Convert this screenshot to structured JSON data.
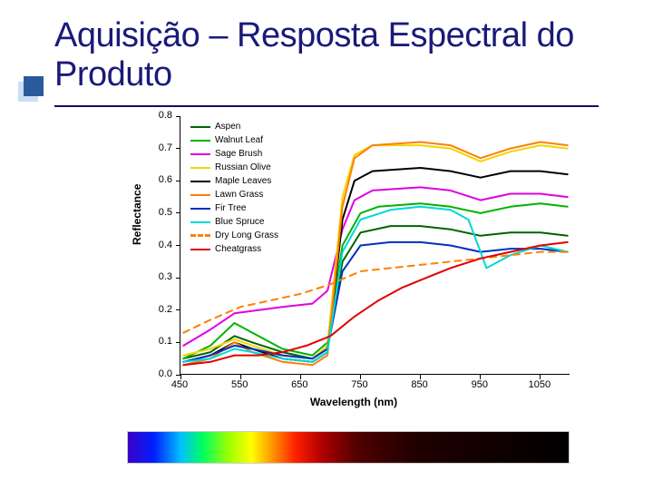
{
  "title": "Aquisição – Resposta Espectral do Produto",
  "chart": {
    "type": "line",
    "xlabel": "Wavelength (nm)",
    "ylabel": "Reflectance",
    "xlim": [
      450,
      1100
    ],
    "ylim": [
      0.0,
      0.8
    ],
    "xtick_step": 100,
    "ytick_step": 0.1,
    "xticks": [
      450,
      550,
      650,
      750,
      850,
      950,
      1050
    ],
    "yticks": [
      0.0,
      0.1,
      0.2,
      0.3,
      0.4,
      0.5,
      0.6,
      0.7,
      0.8
    ],
    "background_color": "#ffffff",
    "axis_color": "#000000",
    "label_fontsize": 12,
    "tick_fontsize": 11,
    "line_width": 2,
    "series": [
      {
        "name": "Aspen",
        "color": "#006400",
        "dash": "solid",
        "points": [
          [
            455,
            0.05
          ],
          [
            500,
            0.07
          ],
          [
            540,
            0.12
          ],
          [
            570,
            0.1
          ],
          [
            620,
            0.07
          ],
          [
            670,
            0.05
          ],
          [
            695,
            0.08
          ],
          [
            720,
            0.35
          ],
          [
            750,
            0.44
          ],
          [
            800,
            0.46
          ],
          [
            850,
            0.46
          ],
          [
            900,
            0.45
          ],
          [
            950,
            0.43
          ],
          [
            1000,
            0.44
          ],
          [
            1050,
            0.44
          ],
          [
            1095,
            0.43
          ]
        ]
      },
      {
        "name": "Walnut Leaf",
        "color": "#00b300",
        "dash": "solid",
        "points": [
          [
            455,
            0.05
          ],
          [
            500,
            0.09
          ],
          [
            540,
            0.16
          ],
          [
            570,
            0.13
          ],
          [
            620,
            0.08
          ],
          [
            670,
            0.06
          ],
          [
            695,
            0.1
          ],
          [
            720,
            0.4
          ],
          [
            750,
            0.5
          ],
          [
            780,
            0.52
          ],
          [
            850,
            0.53
          ],
          [
            900,
            0.52
          ],
          [
            950,
            0.5
          ],
          [
            1000,
            0.52
          ],
          [
            1050,
            0.53
          ],
          [
            1095,
            0.52
          ]
        ]
      },
      {
        "name": "Sage Brush",
        "color": "#e000e0",
        "dash": "solid",
        "points": [
          [
            455,
            0.09
          ],
          [
            500,
            0.14
          ],
          [
            540,
            0.19
          ],
          [
            580,
            0.2
          ],
          [
            620,
            0.21
          ],
          [
            670,
            0.22
          ],
          [
            695,
            0.26
          ],
          [
            720,
            0.45
          ],
          [
            740,
            0.54
          ],
          [
            770,
            0.57
          ],
          [
            850,
            0.58
          ],
          [
            900,
            0.57
          ],
          [
            950,
            0.54
          ],
          [
            1000,
            0.56
          ],
          [
            1050,
            0.56
          ],
          [
            1095,
            0.55
          ]
        ]
      },
      {
        "name": "Russian Olive",
        "color": "#f5d400",
        "dash": "solid",
        "points": [
          [
            455,
            0.06
          ],
          [
            500,
            0.08
          ],
          [
            540,
            0.11
          ],
          [
            570,
            0.09
          ],
          [
            620,
            0.06
          ],
          [
            670,
            0.05
          ],
          [
            695,
            0.09
          ],
          [
            720,
            0.55
          ],
          [
            740,
            0.68
          ],
          [
            770,
            0.71
          ],
          [
            850,
            0.71
          ],
          [
            900,
            0.7
          ],
          [
            950,
            0.66
          ],
          [
            1000,
            0.69
          ],
          [
            1050,
            0.71
          ],
          [
            1095,
            0.7
          ]
        ]
      },
      {
        "name": "Maple Leaves",
        "color": "#000000",
        "dash": "solid",
        "points": [
          [
            455,
            0.04
          ],
          [
            500,
            0.06
          ],
          [
            540,
            0.1
          ],
          [
            570,
            0.08
          ],
          [
            620,
            0.05
          ],
          [
            670,
            0.04
          ],
          [
            695,
            0.07
          ],
          [
            720,
            0.48
          ],
          [
            740,
            0.6
          ],
          [
            770,
            0.63
          ],
          [
            850,
            0.64
          ],
          [
            900,
            0.63
          ],
          [
            950,
            0.61
          ],
          [
            1000,
            0.63
          ],
          [
            1050,
            0.63
          ],
          [
            1095,
            0.62
          ]
        ]
      },
      {
        "name": "Lawn Grass",
        "color": "#ff8000",
        "dash": "solid",
        "points": [
          [
            455,
            0.03
          ],
          [
            500,
            0.05
          ],
          [
            540,
            0.1
          ],
          [
            570,
            0.07
          ],
          [
            620,
            0.04
          ],
          [
            670,
            0.03
          ],
          [
            695,
            0.06
          ],
          [
            720,
            0.52
          ],
          [
            740,
            0.67
          ],
          [
            770,
            0.71
          ],
          [
            850,
            0.72
          ],
          [
            900,
            0.71
          ],
          [
            950,
            0.67
          ],
          [
            1000,
            0.7
          ],
          [
            1050,
            0.72
          ],
          [
            1095,
            0.71
          ]
        ]
      },
      {
        "name": "Fir Tree",
        "color": "#0030c0",
        "dash": "solid",
        "points": [
          [
            455,
            0.04
          ],
          [
            500,
            0.06
          ],
          [
            540,
            0.09
          ],
          [
            570,
            0.08
          ],
          [
            620,
            0.06
          ],
          [
            670,
            0.05
          ],
          [
            695,
            0.08
          ],
          [
            720,
            0.32
          ],
          [
            750,
            0.4
          ],
          [
            800,
            0.41
          ],
          [
            850,
            0.41
          ],
          [
            900,
            0.4
          ],
          [
            950,
            0.38
          ],
          [
            1000,
            0.39
          ],
          [
            1050,
            0.39
          ],
          [
            1095,
            0.38
          ]
        ]
      },
      {
        "name": "Blue Spruce",
        "color": "#00d8d8",
        "dash": "solid",
        "points": [
          [
            455,
            0.04
          ],
          [
            500,
            0.05
          ],
          [
            540,
            0.08
          ],
          [
            570,
            0.07
          ],
          [
            620,
            0.05
          ],
          [
            670,
            0.04
          ],
          [
            695,
            0.07
          ],
          [
            720,
            0.38
          ],
          [
            750,
            0.48
          ],
          [
            800,
            0.51
          ],
          [
            850,
            0.52
          ],
          [
            900,
            0.51
          ],
          [
            930,
            0.48
          ],
          [
            960,
            0.33
          ],
          [
            1000,
            0.37
          ],
          [
            1050,
            0.4
          ],
          [
            1095,
            0.38
          ]
        ]
      },
      {
        "name": "Dry Long Grass",
        "color": "#ff8000",
        "dash": "dashed",
        "points": [
          [
            455,
            0.13
          ],
          [
            500,
            0.17
          ],
          [
            550,
            0.21
          ],
          [
            600,
            0.23
          ],
          [
            650,
            0.25
          ],
          [
            700,
            0.28
          ],
          [
            750,
            0.32
          ],
          [
            800,
            0.33
          ],
          [
            850,
            0.34
          ],
          [
            900,
            0.35
          ],
          [
            950,
            0.36
          ],
          [
            1000,
            0.37
          ],
          [
            1050,
            0.38
          ],
          [
            1095,
            0.38
          ]
        ]
      },
      {
        "name": "Cheatgrass",
        "color": "#e00000",
        "dash": "solid",
        "points": [
          [
            455,
            0.03
          ],
          [
            500,
            0.04
          ],
          [
            540,
            0.06
          ],
          [
            580,
            0.06
          ],
          [
            620,
            0.07
          ],
          [
            660,
            0.09
          ],
          [
            700,
            0.12
          ],
          [
            740,
            0.18
          ],
          [
            780,
            0.23
          ],
          [
            820,
            0.27
          ],
          [
            860,
            0.3
          ],
          [
            900,
            0.33
          ],
          [
            950,
            0.36
          ],
          [
            1000,
            0.38
          ],
          [
            1050,
            0.4
          ],
          [
            1095,
            0.41
          ]
        ]
      }
    ]
  },
  "spectrum": {
    "gradient_stops": [
      {
        "pct": 0,
        "color": "#3a00c8"
      },
      {
        "pct": 6,
        "color": "#0020ff"
      },
      {
        "pct": 12,
        "color": "#00c0ff"
      },
      {
        "pct": 17,
        "color": "#00ff60"
      },
      {
        "pct": 23,
        "color": "#a0ff00"
      },
      {
        "pct": 28,
        "color": "#ffff00"
      },
      {
        "pct": 33,
        "color": "#ff9000"
      },
      {
        "pct": 38,
        "color": "#ff2000"
      },
      {
        "pct": 44,
        "color": "#b00000"
      },
      {
        "pct": 52,
        "color": "#500000"
      },
      {
        "pct": 65,
        "color": "#200000"
      },
      {
        "pct": 100,
        "color": "#000000"
      }
    ]
  }
}
